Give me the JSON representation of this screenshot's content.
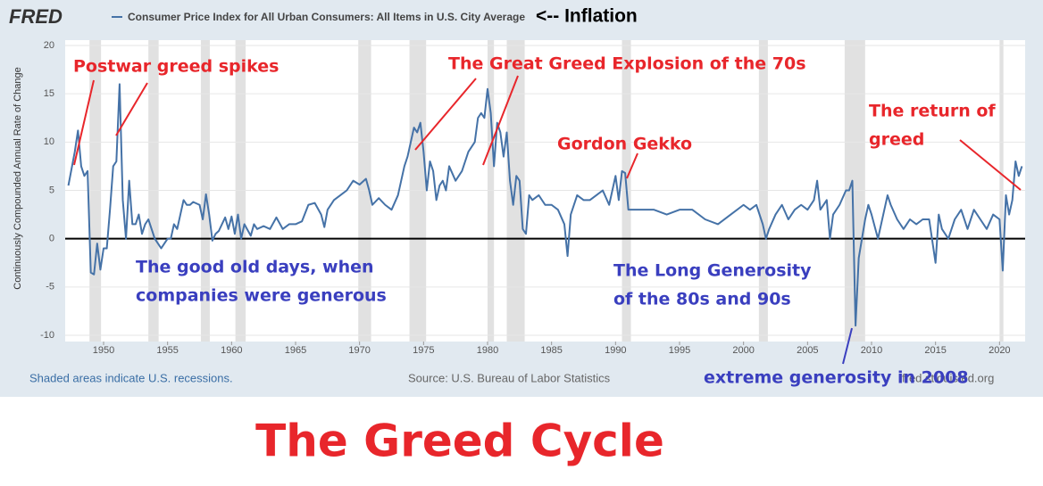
{
  "chart_data": {
    "type": "line",
    "logo": "FRED",
    "title": "The Greed Cycle",
    "legend_annotation": "<-- Inflation",
    "ylabel": "Continuously Compounded Annual Rate of Change",
    "recession_note": "Shaded areas indicate U.S. recessions.",
    "source": "Source: U.S. Bureau of Labor Statistics",
    "site": "fred.stlouisfed.org",
    "xlim": [
      1947,
      2022
    ],
    "xticks": [
      1950,
      1955,
      1960,
      1965,
      1970,
      1975,
      1980,
      1985,
      1990,
      1995,
      2000,
      2005,
      2010,
      2015,
      2020
    ],
    "ylim": [
      -10,
      20
    ],
    "yticks": [
      -10,
      -5,
      0,
      5,
      10,
      15,
      20
    ],
    "grid": true,
    "recessions": [
      [
        1948.9,
        1949.8
      ],
      [
        1953.5,
        1954.3
      ],
      [
        1957.6,
        1958.3
      ],
      [
        1960.3,
        1961.1
      ],
      [
        1969.9,
        1970.9
      ],
      [
        1973.9,
        1975.2
      ],
      [
        1980.0,
        1980.5
      ],
      [
        1981.5,
        1982.9
      ],
      [
        1990.5,
        1991.2
      ],
      [
        2001.2,
        2001.9
      ],
      [
        2007.9,
        2009.5
      ],
      [
        2020.0,
        2020.3
      ]
    ],
    "x": [
      1947.25,
      1947.75,
      1948.0,
      1948.25,
      1948.5,
      1948.75,
      1949.0,
      1949.25,
      1949.5,
      1949.75,
      1950.0,
      1950.25,
      1950.5,
      1950.75,
      1951.0,
      1951.25,
      1951.5,
      1951.75,
      1952.0,
      1952.25,
      1952.5,
      1952.75,
      1953.0,
      1953.25,
      1953.5,
      1953.75,
      1954.0,
      1954.25,
      1954.5,
      1954.75,
      1955.0,
      1955.25,
      1955.5,
      1955.75,
      1956.0,
      1956.25,
      1956.5,
      1956.75,
      1957.0,
      1957.5,
      1957.75,
      1958.0,
      1958.25,
      1958.5,
      1958.75,
      1959.0,
      1959.5,
      1959.75,
      1960.0,
      1960.25,
      1960.5,
      1960.75,
      1961.0,
      1961.5,
      1961.75,
      1962.0,
      1962.5,
      1963.0,
      1963.5,
      1964.0,
      1964.5,
      1965.0,
      1965.5,
      1966.0,
      1966.5,
      1967.0,
      1967.25,
      1967.5,
      1968.0,
      1968.5,
      1969.0,
      1969.5,
      1970.0,
      1970.5,
      1970.75,
      1971.0,
      1971.5,
      1972.0,
      1972.5,
      1973.0,
      1973.5,
      1973.75,
      1974.0,
      1974.25,
      1974.5,
      1974.75,
      1975.0,
      1975.25,
      1975.5,
      1975.75,
      1976.0,
      1976.25,
      1976.5,
      1976.75,
      1977.0,
      1977.5,
      1978.0,
      1978.5,
      1979.0,
      1979.25,
      1979.5,
      1979.75,
      1980.0,
      1980.25,
      1980.5,
      1980.75,
      1981.0,
      1981.25,
      1981.5,
      1981.75,
      1982.0,
      1982.25,
      1982.5,
      1982.75,
      1983.0,
      1983.25,
      1983.5,
      1984.0,
      1984.5,
      1985.0,
      1985.5,
      1986.0,
      1986.25,
      1986.5,
      1987.0,
      1987.5,
      1988.0,
      1988.5,
      1989.0,
      1989.5,
      1990.0,
      1990.25,
      1990.5,
      1990.75,
      1991.0,
      1991.5,
      1992.0,
      1993.0,
      1994.0,
      1995.0,
      1996.0,
      1997.0,
      1998.0,
      1999.0,
      2000.0,
      2000.5,
      2001.0,
      2001.5,
      2001.75,
      2002.0,
      2002.5,
      2003.0,
      2003.5,
      2004.0,
      2004.5,
      2005.0,
      2005.5,
      2005.75,
      2006.0,
      2006.5,
      2006.75,
      2007.0,
      2007.5,
      2008.0,
      2008.25,
      2008.5,
      2008.75,
      2009.0,
      2009.5,
      2009.75,
      2010.0,
      2010.5,
      2011.0,
      2011.25,
      2011.5,
      2012.0,
      2012.5,
      2013.0,
      2013.5,
      2014.0,
      2014.5,
      2015.0,
      2015.25,
      2015.5,
      2016.0,
      2016.5,
      2017.0,
      2017.5,
      2018.0,
      2018.5,
      2019.0,
      2019.5,
      2020.0,
      2020.25,
      2020.5,
      2020.75,
      2021.0,
      2021.25,
      2021.5,
      2021.75
    ],
    "series": [
      {
        "name": "Consumer Price Index for All Urban Consumers: All Items in U.S. City Average",
        "color": "#4572a7",
        "values": [
          5.5,
          9,
          11.2,
          7.5,
          6.5,
          7,
          -3.5,
          -3.7,
          -0.5,
          -3.2,
          -1,
          -1,
          3,
          7.5,
          8,
          16,
          4,
          0,
          6,
          1.5,
          1.5,
          2.5,
          0.5,
          1.5,
          2,
          1,
          0,
          -0.5,
          -1,
          -0.5,
          0,
          0,
          1.5,
          1,
          2.5,
          4,
          3.5,
          3.5,
          3.8,
          3.5,
          2,
          4.6,
          2.5,
          -0.2,
          0.5,
          0.8,
          2.2,
          1,
          2.3,
          0.5,
          2.5,
          0,
          1.5,
          0.3,
          1.5,
          1,
          1.3,
          1,
          2.2,
          1,
          1.5,
          1.5,
          1.8,
          3.5,
          3.7,
          2.5,
          1.2,
          3,
          4,
          4.5,
          5,
          6,
          5.6,
          6.2,
          5,
          3.5,
          4.2,
          3.5,
          3,
          4.5,
          7.5,
          8.5,
          10,
          11.5,
          11,
          12,
          9,
          5,
          8,
          7,
          4,
          5.5,
          6,
          5,
          7.5,
          6,
          7,
          9,
          10,
          12.5,
          13,
          12.5,
          15.5,
          13,
          7.5,
          12,
          11,
          8.5,
          11,
          6,
          3.5,
          6.5,
          6,
          1,
          0.5,
          4.5,
          4,
          4.5,
          3.5,
          3.5,
          3,
          1.5,
          -1.8,
          2.5,
          4.5,
          4,
          4,
          4.5,
          5,
          3.5,
          6.5,
          4,
          7,
          6.8,
          3,
          3,
          3,
          3,
          2.5,
          3,
          3,
          2,
          1.5,
          2.5,
          3.5,
          3,
          3.5,
          1.5,
          0,
          1,
          2.5,
          3.5,
          2,
          3,
          3.5,
          3,
          4,
          6,
          3,
          4,
          0,
          2.5,
          3.5,
          5,
          5,
          6,
          -9,
          -2,
          2,
          3.5,
          2.5,
          0,
          3,
          4.5,
          3.5,
          2,
          1,
          2,
          1.5,
          2,
          2,
          -2.5,
          2.5,
          1,
          0,
          2,
          3,
          1,
          3,
          2,
          1,
          2.5,
          2,
          -3.3,
          4.5,
          2.5,
          4,
          8,
          6.5,
          7.5
        ]
      }
    ],
    "annotations": [
      {
        "lines": [
          "Postwar greed spikes"
        ],
        "color": "#e8262b"
      },
      {
        "lines": [
          "The Great Greed Explosion of the 70s"
        ],
        "color": "#e8262b"
      },
      {
        "lines": [
          "Gordon Gekko"
        ],
        "color": "#e8262b"
      },
      {
        "lines": [
          "The return of",
          "greed"
        ],
        "color": "#e8262b"
      },
      {
        "lines": [
          "The good old days, when",
          "companies were generous"
        ],
        "color": "#3a3fbf"
      },
      {
        "lines": [
          "The Long Generosity",
          "of the 80s and 90s"
        ],
        "color": "#3a3fbf"
      },
      {
        "lines": [
          "extreme generosity in 2008"
        ],
        "color": "#3a3fbf"
      }
    ]
  }
}
